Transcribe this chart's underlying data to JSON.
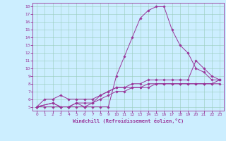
{
  "xlabel": "Windchill (Refroidissement éolien,°C)",
  "bg_color": "#cceeff",
  "line_color": "#993399",
  "grid_color": "#99ccbb",
  "xlim": [
    -0.5,
    23.5
  ],
  "ylim": [
    4.5,
    18.5
  ],
  "xticks": [
    0,
    1,
    2,
    3,
    4,
    5,
    6,
    7,
    8,
    9,
    10,
    11,
    12,
    13,
    14,
    15,
    16,
    17,
    18,
    19,
    20,
    21,
    22,
    23
  ],
  "yticks": [
    5,
    6,
    7,
    8,
    9,
    10,
    11,
    12,
    13,
    14,
    15,
    16,
    17,
    18
  ],
  "lines": [
    {
      "x": [
        0,
        1,
        2,
        3,
        4,
        5,
        6,
        7,
        8,
        9,
        10,
        11,
        12,
        13,
        14,
        15,
        16,
        17,
        18,
        19,
        20,
        21,
        22,
        23
      ],
      "y": [
        5,
        5,
        5,
        5,
        5,
        5,
        5,
        5,
        5,
        5,
        9,
        11.5,
        14,
        16.5,
        17.5,
        18,
        18,
        15,
        13,
        12,
        10,
        9.5,
        8.5,
        8.5
      ]
    },
    {
      "x": [
        0,
        2,
        3,
        4,
        5,
        6,
        7,
        8,
        9,
        10,
        11,
        12,
        13,
        14,
        15,
        16,
        17,
        18,
        19,
        20,
        21,
        22,
        23
      ],
      "y": [
        5,
        5.5,
        5,
        5,
        5.5,
        5.5,
        5.5,
        6.5,
        7,
        7.5,
        7.5,
        8,
        8,
        8.5,
        8.5,
        8.5,
        8.5,
        8.5,
        8.5,
        11,
        10,
        9,
        8.5
      ]
    },
    {
      "x": [
        0,
        2,
        3,
        4,
        5,
        6,
        7,
        8,
        9,
        10,
        11,
        12,
        13,
        14,
        15,
        16,
        17,
        18,
        19,
        20,
        21,
        22,
        23
      ],
      "y": [
        5,
        5.5,
        5,
        5,
        5.5,
        5,
        5.5,
        6,
        6.5,
        7,
        7,
        7.5,
        7.5,
        7.5,
        8,
        8,
        8,
        8,
        8,
        8,
        8,
        8,
        8.5
      ]
    },
    {
      "x": [
        0,
        1,
        2,
        3,
        4,
        5,
        6,
        7,
        8,
        9,
        10,
        11,
        12,
        13,
        14,
        15,
        16,
        17,
        18,
        19,
        20,
        21,
        22,
        23
      ],
      "y": [
        5,
        6,
        6,
        6.5,
        6,
        6,
        6,
        6,
        6.5,
        7,
        7.5,
        7.5,
        7.5,
        7.5,
        8,
        8,
        8,
        8,
        8,
        8,
        8,
        8,
        8,
        8
      ]
    }
  ]
}
